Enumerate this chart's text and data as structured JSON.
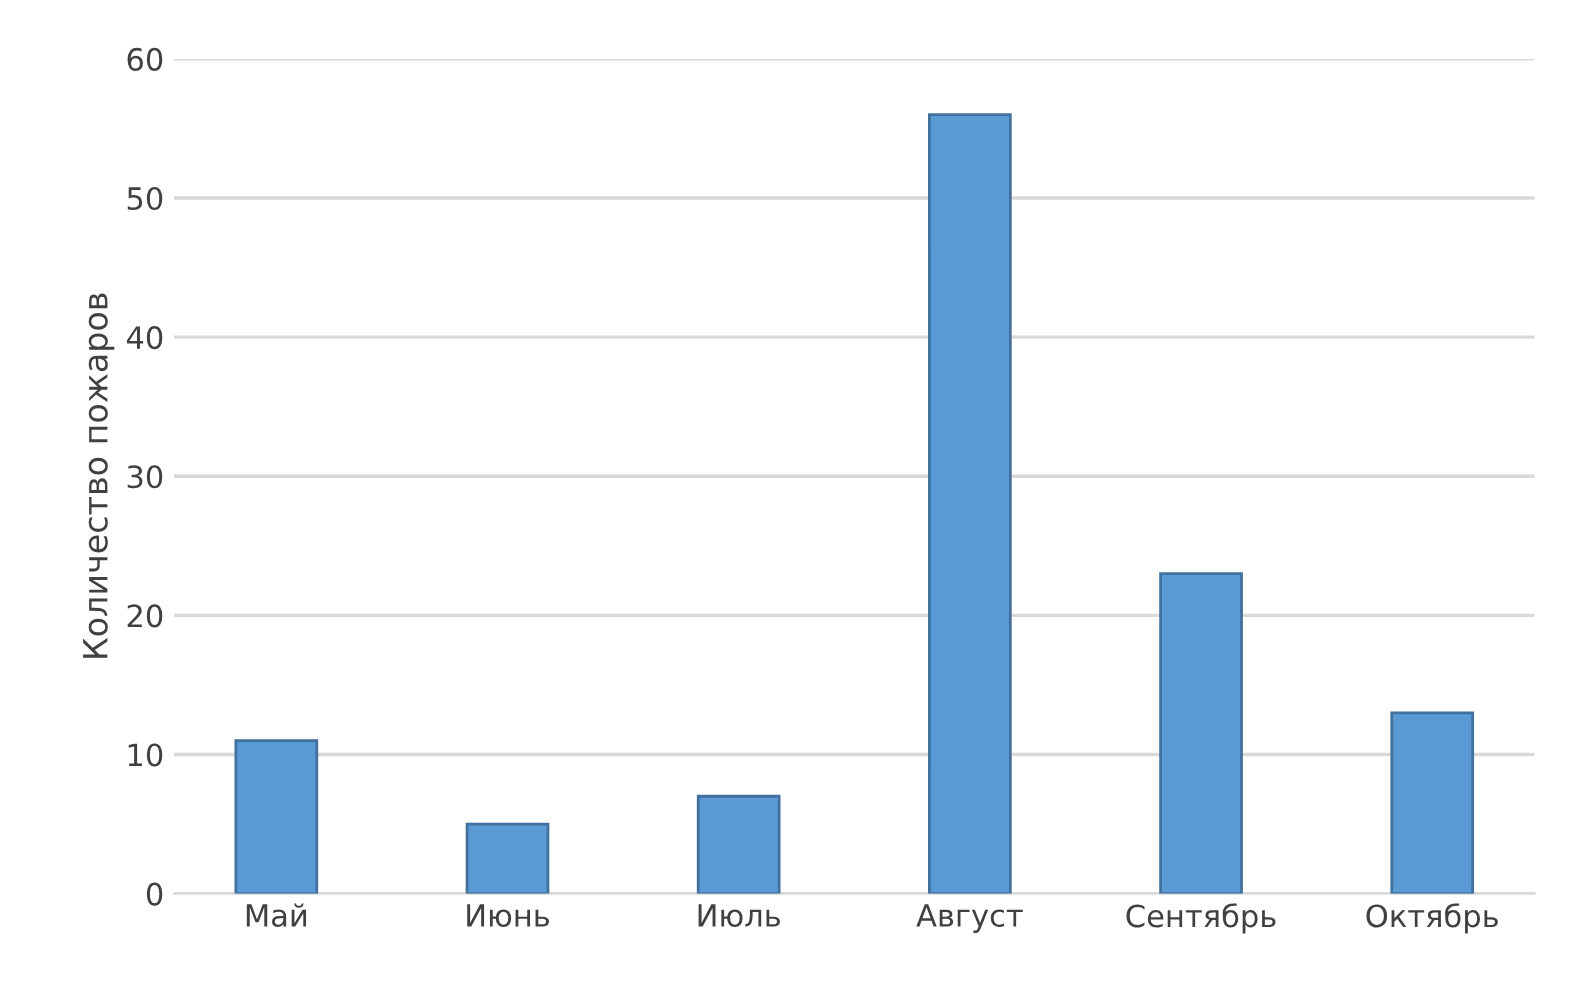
{
  "chart_data": {
    "type": "bar",
    "ylabel": "Количество пожаров",
    "categories": [
      "Май",
      "Июнь",
      "Июль",
      "Август",
      "Сентябрь",
      "Октябрь"
    ],
    "values": [
      11,
      5,
      7,
      56,
      23,
      13
    ],
    "color": "#5b9bd5",
    "ylim": [
      0,
      60
    ],
    "yticks": [
      0,
      10,
      20,
      30,
      40,
      50,
      60
    ],
    "grid": "y"
  }
}
